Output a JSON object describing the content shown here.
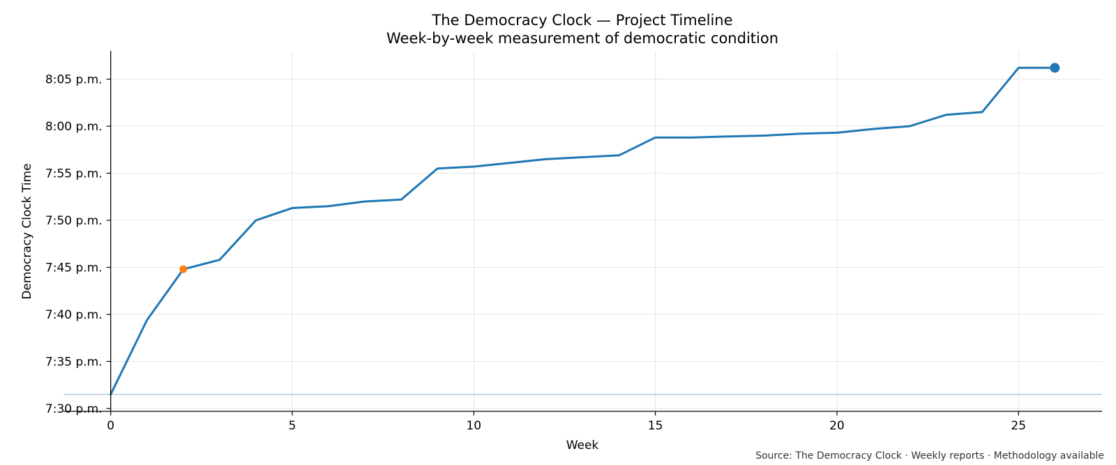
{
  "chart_data": {
    "type": "line",
    "title": "The Democracy Clock — Project Timeline",
    "subtitle": "Week-by-week measurement of democratic condition",
    "xlabel": "Week",
    "ylabel": "Democracy Clock Time",
    "source": "Source: The Democracy Clock · Weekly reports · Methodology available",
    "xlim": [
      -1.3,
      27.3
    ],
    "ylim_minutes": [
      1889.7,
      1928.0
    ],
    "xticks": [
      0,
      5,
      10,
      15,
      20,
      25
    ],
    "yticks": [
      {
        "value": 1890,
        "label": "7:30 p.m."
      },
      {
        "value": 1895,
        "label": "7:35 p.m."
      },
      {
        "value": 1900,
        "label": "7:40 p.m."
      },
      {
        "value": 1905,
        "label": "7:45 p.m."
      },
      {
        "value": 1910,
        "label": "7:50 p.m."
      },
      {
        "value": 1915,
        "label": "7:55 p.m."
      },
      {
        "value": 1920,
        "label": "8:00 p.m."
      },
      {
        "value": 1925,
        "label": "8:05 p.m."
      }
    ],
    "grid": true,
    "reference_line_minutes": 1891.5,
    "series": [
      {
        "color": "#1f77b4",
        "x": [
          0,
          1,
          2,
          3,
          4,
          5,
          6,
          7,
          8,
          9,
          10,
          11,
          12,
          13,
          14,
          15,
          16,
          17,
          18,
          19,
          20,
          21,
          22,
          23,
          24,
          25,
          26
        ],
        "y_minutes": [
          1891.5,
          1899.4,
          1904.8,
          1905.8,
          1910.0,
          1911.3,
          1911.5,
          1912.0,
          1912.2,
          1915.5,
          1915.7,
          1916.1,
          1916.5,
          1916.7,
          1916.9,
          1918.8,
          1918.8,
          1918.9,
          1919.0,
          1919.2,
          1919.3,
          1919.7,
          1920.0,
          1921.2,
          1921.5,
          1926.2,
          1926.2
        ]
      }
    ],
    "highlight_points": [
      {
        "x": 2,
        "y_minutes": 1904.8,
        "color": "#ff7f0e"
      },
      {
        "x": 26,
        "y_minutes": 1926.2,
        "color": "#1f77b4"
      }
    ],
    "colors": {
      "line": "#1f77b4",
      "highlight": "#ff7f0e",
      "reference": "#a6cbe0",
      "grid": "#e6e6e6"
    }
  }
}
